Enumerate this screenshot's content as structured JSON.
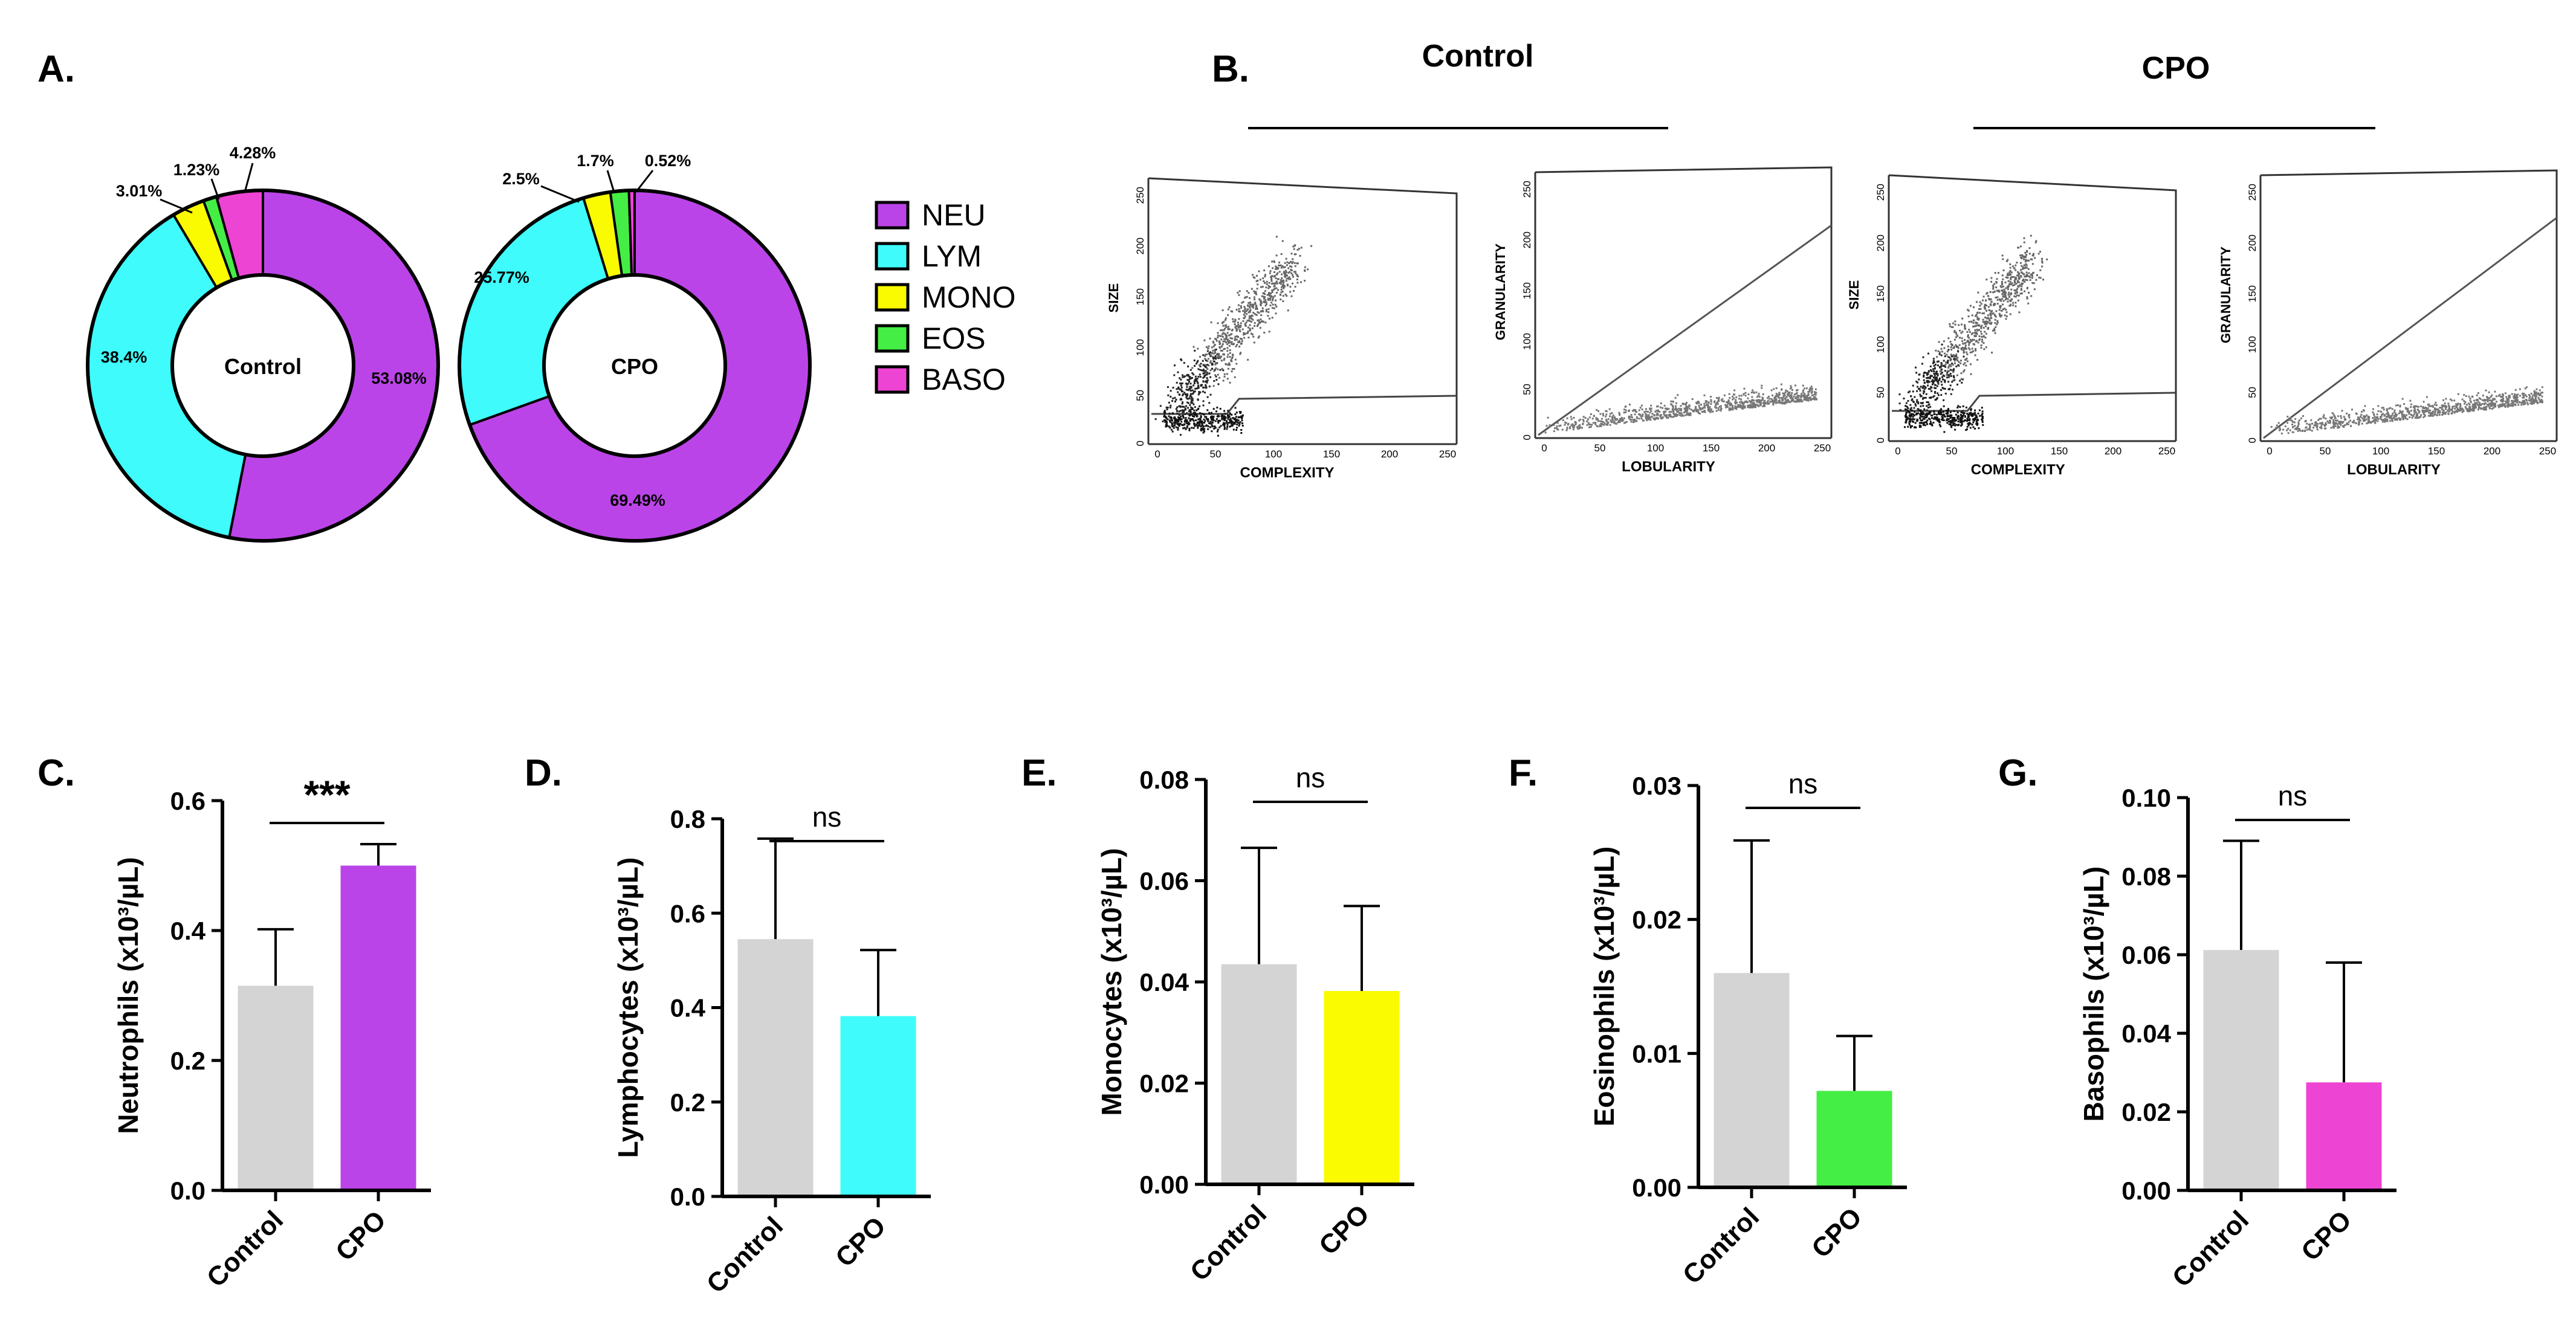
{
  "panels": {
    "a": "A.",
    "b": "B.",
    "c": "C.",
    "d": "D.",
    "e": "E.",
    "f": "F.",
    "g": "G."
  },
  "colors": {
    "neu": "#bb44e8",
    "lym": "#3ffbfb",
    "mono": "#fafa00",
    "eos": "#44ee44",
    "baso": "#ee44d4",
    "control": "#d4d4d4"
  },
  "chart_data": [
    {
      "type": "pie",
      "title": "Control",
      "labels": [
        "NEU",
        "LYM",
        "MONO",
        "EOS",
        "BASO"
      ],
      "values": [
        53.08,
        38.4,
        3.01,
        1.23,
        4.28
      ],
      "value_labels": [
        "53.08%",
        "38.4%",
        "3.01%",
        "1.23%",
        "4.28%"
      ],
      "style": "donut"
    },
    {
      "type": "pie",
      "title": "CPO",
      "labels": [
        "NEU",
        "LYM",
        "MONO",
        "EOS",
        "BASO"
      ],
      "values": [
        69.49,
        25.77,
        2.5,
        1.7,
        0.52
      ],
      "value_labels": [
        "69.49%",
        "25.77%",
        "2.5%",
        "1.7%",
        "0.52%"
      ],
      "style": "donut"
    },
    {
      "type": "bar",
      "categories": [
        "Control",
        "CPO"
      ],
      "values": [
        0.315,
        0.5
      ],
      "errors": [
        0.087,
        0.033
      ],
      "ylabel": "Neutrophils (x10³/µL)",
      "ylim": [
        0,
        0.6
      ],
      "yticks": [
        "0.0",
        "0.2",
        "0.4",
        "0.6"
      ],
      "significance": "***"
    },
    {
      "type": "bar",
      "categories": [
        "Control",
        "CPO"
      ],
      "values": [
        0.545,
        0.382
      ],
      "errors": [
        0.213,
        0.14
      ],
      "ylabel": "Lymphocytes (x10³/µL)",
      "ylim": [
        0,
        0.8
      ],
      "yticks": [
        "0.0",
        "0.2",
        "0.4",
        "0.6",
        "0.8"
      ],
      "significance": "ns"
    },
    {
      "type": "bar",
      "categories": [
        "Control",
        "CPO"
      ],
      "values": [
        0.0435,
        0.0382
      ],
      "errors": [
        0.023,
        0.0168
      ],
      "ylabel": "Monocytes (x10³/µL)",
      "ylim": [
        0,
        0.08
      ],
      "yticks": [
        "0.00",
        "0.02",
        "0.04",
        "0.06",
        "0.08"
      ],
      "significance": "ns"
    },
    {
      "type": "bar",
      "categories": [
        "Control",
        "CPO"
      ],
      "values": [
        0.016,
        0.0072
      ],
      "errors": [
        0.0099,
        0.0041
      ],
      "ylabel": "Eosinophils (x10³/µL)",
      "ylim": [
        0,
        0.03
      ],
      "yticks": [
        "0.00",
        "0.01",
        "0.02",
        "0.03"
      ],
      "significance": "ns"
    },
    {
      "type": "bar",
      "categories": [
        "Control",
        "CPO"
      ],
      "values": [
        0.0612,
        0.0275
      ],
      "errors": [
        0.0278,
        0.0305
      ],
      "ylabel": "Basophils (x10³/µL)",
      "ylim": [
        0,
        0.1
      ],
      "yticks": [
        "0.00",
        "0.02",
        "0.04",
        "0.06",
        "0.08",
        "0.10"
      ],
      "significance": "ns"
    }
  ],
  "flow": {
    "group_titles": [
      "Control",
      "CPO"
    ],
    "plots": [
      {
        "ylabel": "SIZE",
        "xlabel": "COMPLEXITY",
        "yticks": [
          "250",
          "200",
          "150",
          "100",
          "50",
          "0"
        ],
        "xticks": [
          "0",
          "50",
          "100",
          "150",
          "200",
          "250"
        ]
      },
      {
        "ylabel": "GRANULARITY",
        "xlabel": "LOBULARITY",
        "yticks": [
          "250",
          "200",
          "150",
          "100",
          "50",
          "0"
        ],
        "xticks": [
          "0",
          "50",
          "100",
          "150",
          "200",
          "250"
        ]
      },
      {
        "ylabel": "SIZE",
        "xlabel": "COMPLEXITY",
        "yticks": [
          "250",
          "200",
          "150",
          "100",
          "50",
          "0"
        ],
        "xticks": [
          "0",
          "50",
          "100",
          "150",
          "200",
          "250"
        ]
      },
      {
        "ylabel": "GRANULARITY",
        "xlabel": "LOBULARITY",
        "yticks": [
          "250",
          "200",
          "150",
          "100",
          "50",
          "0"
        ],
        "xticks": [
          "0",
          "50",
          "100",
          "150",
          "200",
          "250"
        ]
      }
    ]
  }
}
